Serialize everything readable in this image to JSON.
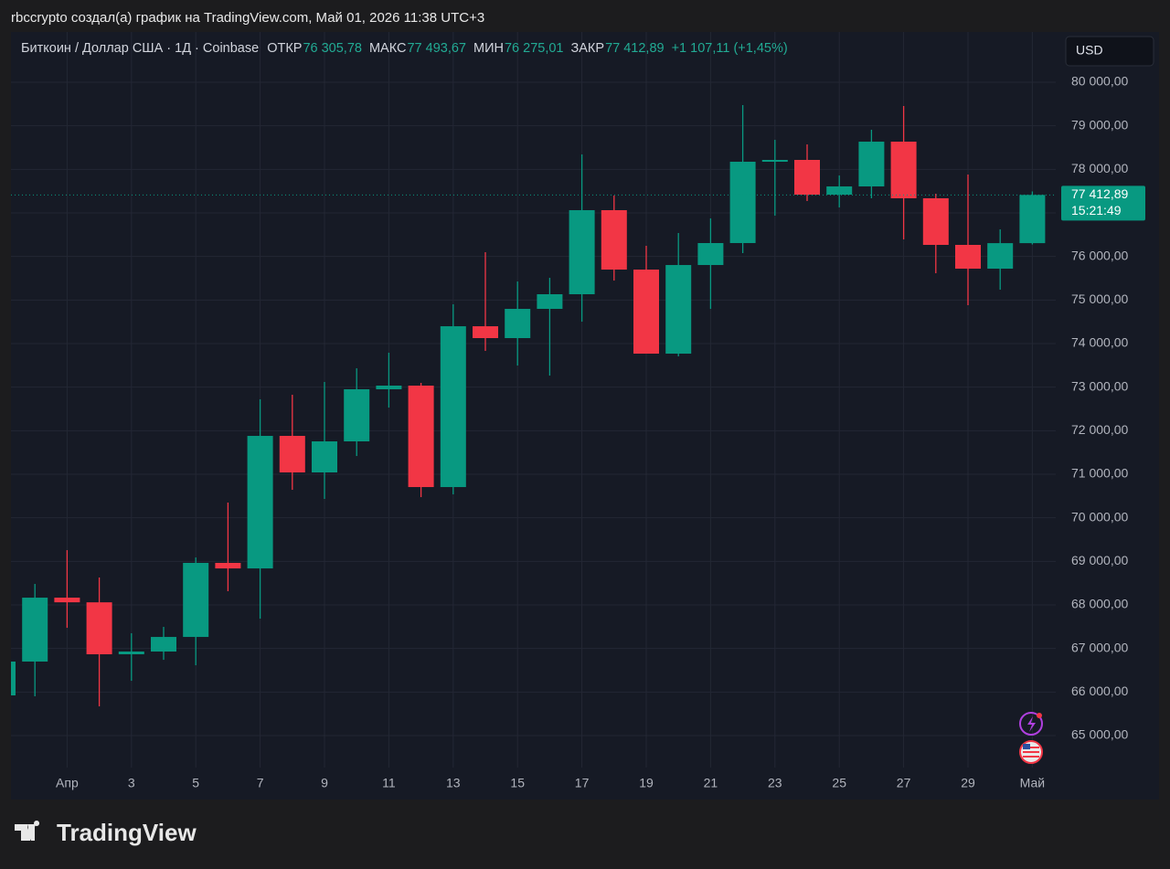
{
  "caption": "rbccrypto создал(а) график на TradingView.com, Май 01, 2026 11:38 UTC+3",
  "header": {
    "symbol": "Биткоин / Доллар США · 1Д · Coinbase",
    "open_label": "ОТКР",
    "open": "76 305,78",
    "high_label": "МАКС",
    "high": "77 493,67",
    "low_label": "МИН",
    "low": "76 275,01",
    "close_label": "ЗАКР",
    "close": "77 412,89",
    "change": "+1 107,11 (+1,45%)"
  },
  "currency": "USD",
  "logo": "TradingView",
  "chart_data": {
    "type": "candlestick",
    "categories": [
      null,
      null,
      "Апр",
      null,
      "3",
      null,
      "5",
      null,
      "7",
      null,
      "9",
      null,
      "11",
      null,
      "13",
      null,
      "15",
      null,
      "17",
      null,
      "19",
      null,
      "21",
      null,
      "23",
      null,
      "25",
      null,
      "27",
      null,
      "29",
      null,
      "Май"
    ],
    "open": [
      65923,
      66700,
      68167,
      68060,
      66867,
      66930,
      67265,
      68965,
      68838,
      71881,
      71042,
      71755,
      72951,
      73035,
      70706,
      74398,
      74126,
      74797,
      75133,
      77063,
      75699,
      73769,
      75804,
      76308,
      78175,
      78217,
      77419,
      77608,
      78636,
      77336,
      76266,
      75720,
      76305.78
    ],
    "high": [
      66750,
      68482,
      69258,
      68629,
      67350,
      67496,
      69090,
      70350,
      72720,
      72825,
      73119,
      73433,
      73790,
      73098,
      74902,
      76098,
      75426,
      75510,
      78343,
      77398,
      76245,
      76538,
      76874,
      79476,
      78678,
      78573,
      77860,
      78909,
      79455,
      77441,
      77881,
      76622,
      77493.67
    ],
    "low": [
      65900,
      65902,
      67475,
      65671,
      66258,
      66740,
      66615,
      68315,
      67685,
      70643,
      70433,
      71419,
      72531,
      70475,
      70538,
      73832,
      73496,
      73265,
      74503,
      75447,
      73769,
      73706,
      74797,
      76077,
      76937,
      77273,
      77126,
      77336,
      76391,
      75615,
      74881,
      75238,
      76275.01
    ],
    "close": [
      66700,
      68167,
      68060,
      66867,
      66930,
      67265,
      68965,
      68838,
      71881,
      71042,
      71755,
      72951,
      73035,
      70706,
      74398,
      74126,
      74797,
      75133,
      77063,
      75699,
      73769,
      75804,
      76308,
      78175,
      78217,
      77419,
      77608,
      78636,
      77336,
      76266,
      75720,
      76306,
      77412.89
    ],
    "up_color": "#089981",
    "down_color": "#f23645",
    "ylim": [
      64266,
      81154
    ],
    "yticks": [
      {
        "value": 65000,
        "label": "65 000,00"
      },
      {
        "value": 66000,
        "label": "66 000,00"
      },
      {
        "value": 67000,
        "label": "67 000,00"
      },
      {
        "value": 68000,
        "label": "68 000,00"
      },
      {
        "value": 69000,
        "label": "69 000,00"
      },
      {
        "value": 70000,
        "label": "70 000,00"
      },
      {
        "value": 71000,
        "label": "71 000,00"
      },
      {
        "value": 72000,
        "label": "72 000,00"
      },
      {
        "value": 73000,
        "label": "73 000,00"
      },
      {
        "value": 74000,
        "label": "74 000,00"
      },
      {
        "value": 75000,
        "label": "75 000,00"
      },
      {
        "value": 76000,
        "label": "76 000,00"
      },
      {
        "value": 77000,
        "label": "77 000,00"
      },
      {
        "value": 78000,
        "label": "78 000,00"
      },
      {
        "value": 79000,
        "label": "79 000,00"
      },
      {
        "value": 80000,
        "label": "80 000,00"
      }
    ],
    "grid": true,
    "price_label": "77 412,89",
    "countdown": "15:21:49"
  }
}
